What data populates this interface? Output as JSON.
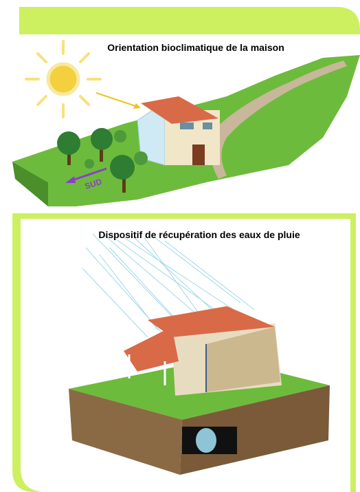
{
  "panels": [
    {
      "title": "Orientation bioclimatique de la maison",
      "direction_label": "SUD"
    },
    {
      "title": "Dispositif de récupération des eaux de pluie"
    }
  ]
}
